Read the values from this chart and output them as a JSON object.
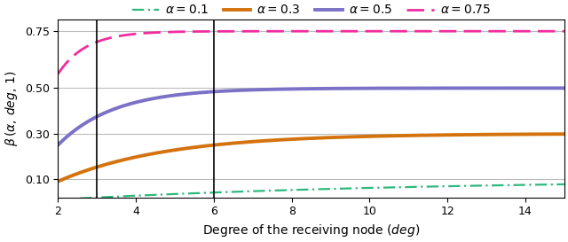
{
  "alphas": [
    0.1,
    0.3,
    0.5,
    0.75
  ],
  "colors": [
    "#2db87d",
    "#d4720e",
    "#7b72c8",
    "#f02d9e"
  ],
  "linestyles": [
    "dashdot",
    "solid",
    "solid",
    "dashed"
  ],
  "linewidths": [
    1.6,
    2.8,
    2.8,
    2.0
  ],
  "x_min": 2,
  "x_max": 15,
  "x_ticks": [
    2,
    4,
    6,
    8,
    10,
    12,
    14
  ],
  "y_min": 0.02,
  "y_max": 0.8,
  "y_ticks": [
    0.1,
    0.3,
    0.5,
    0.75
  ],
  "vlines": [
    3,
    6
  ],
  "xlabel": "Degree of the receiving node ($deg$)",
  "ylabel": "$\\beta\\,( \\alpha,\\, deg,\\, 1)$",
  "legend_labels": [
    "$\\alpha = 0.1$",
    "$\\alpha = 0.3$",
    "$\\alpha = 0.5$",
    "$\\alpha = 0.75$"
  ],
  "grid_color": "#bbbbbb",
  "background_color": "#ffffff",
  "axis_fontsize": 10,
  "legend_fontsize": 10,
  "tick_fontsize": 9
}
